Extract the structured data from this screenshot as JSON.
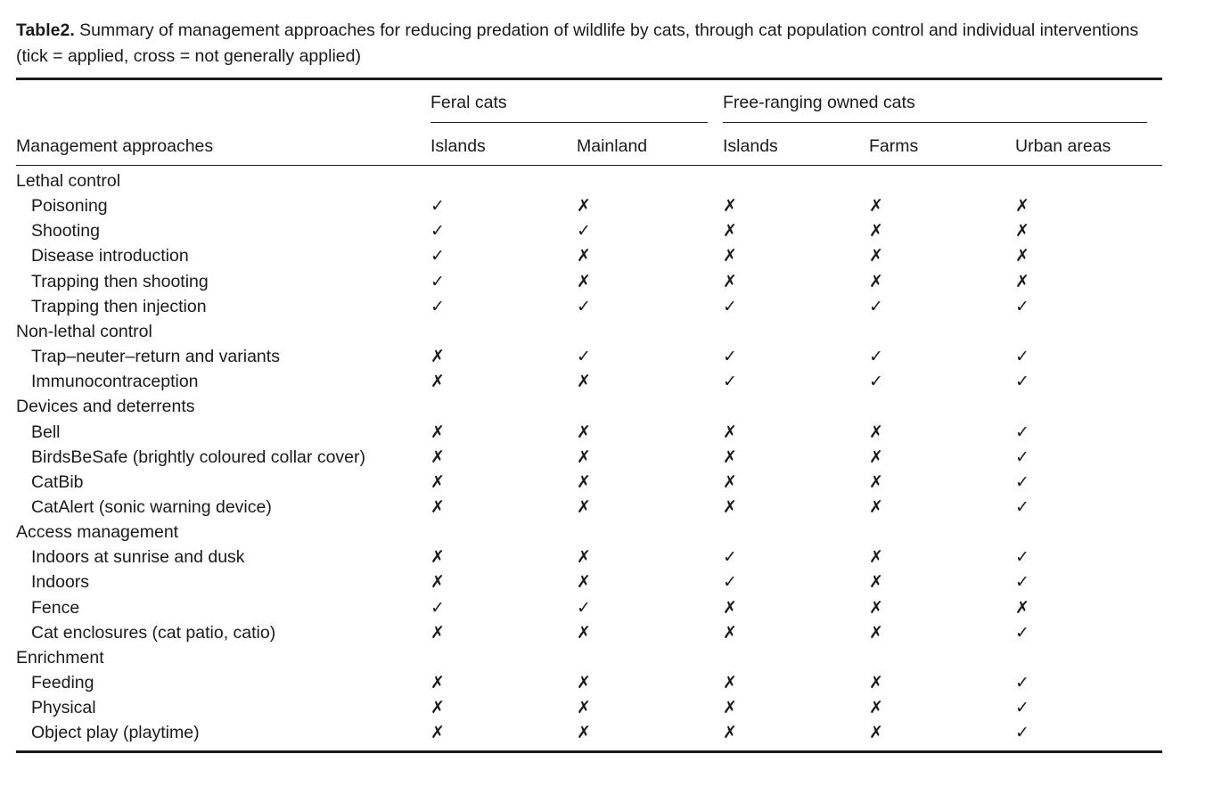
{
  "caption": {
    "label": "Table2.",
    "text": " Summary of management approaches for reducing predation of wildlife by cats, through cat population control and individual interventions (tick = applied, cross = not generally applied)"
  },
  "table": {
    "row_header": "Management approaches",
    "groups": [
      {
        "label": "Feral cats",
        "columns": [
          "Islands",
          "Mainland"
        ]
      },
      {
        "label": "Free-ranging owned cats",
        "columns": [
          "Islands",
          "Farms",
          "Urban areas"
        ]
      }
    ],
    "symbols": {
      "yes": "✓",
      "no": "✗"
    },
    "sections": [
      {
        "title": "Lethal control",
        "rows": [
          {
            "label": "Poisoning",
            "values": [
              "yes",
              "no",
              "no",
              "no",
              "no"
            ]
          },
          {
            "label": "Shooting",
            "values": [
              "yes",
              "yes",
              "no",
              "no",
              "no"
            ]
          },
          {
            "label": "Disease introduction",
            "values": [
              "yes",
              "no",
              "no",
              "no",
              "no"
            ]
          },
          {
            "label": "Trapping then shooting",
            "values": [
              "yes",
              "no",
              "no",
              "no",
              "no"
            ]
          },
          {
            "label": "Trapping then injection",
            "values": [
              "yes",
              "yes",
              "yes",
              "yes",
              "yes"
            ]
          }
        ]
      },
      {
        "title": "Non-lethal control",
        "rows": [
          {
            "label": "Trap–neuter–return and variants",
            "values": [
              "no",
              "yes",
              "yes",
              "yes",
              "yes"
            ]
          },
          {
            "label": "Immunocontraception",
            "values": [
              "no",
              "no",
              "yes",
              "yes",
              "yes"
            ]
          }
        ]
      },
      {
        "title": "Devices and deterrents",
        "rows": [
          {
            "label": "Bell",
            "values": [
              "no",
              "no",
              "no",
              "no",
              "yes"
            ]
          },
          {
            "label": "BirdsBeSafe (brightly coloured collar cover)",
            "values": [
              "no",
              "no",
              "no",
              "no",
              "yes"
            ]
          },
          {
            "label": "CatBib",
            "values": [
              "no",
              "no",
              "no",
              "no",
              "yes"
            ]
          },
          {
            "label": "CatAlert (sonic warning device)",
            "values": [
              "no",
              "no",
              "no",
              "no",
              "yes"
            ]
          }
        ]
      },
      {
        "title": "Access management",
        "rows": [
          {
            "label": "Indoors at sunrise and dusk",
            "values": [
              "no",
              "no",
              "yes",
              "no",
              "yes"
            ]
          },
          {
            "label": "Indoors",
            "values": [
              "no",
              "no",
              "yes",
              "no",
              "yes"
            ]
          },
          {
            "label": "Fence",
            "values": [
              "yes",
              "yes",
              "no",
              "no",
              "no"
            ]
          },
          {
            "label": "Cat enclosures (cat patio, catio)",
            "values": [
              "no",
              "no",
              "no",
              "no",
              "yes"
            ]
          }
        ]
      },
      {
        "title": "Enrichment",
        "rows": [
          {
            "label": "Feeding",
            "values": [
              "no",
              "no",
              "no",
              "no",
              "yes"
            ]
          },
          {
            "label": "Physical",
            "values": [
              "no",
              "no",
              "no",
              "no",
              "yes"
            ]
          },
          {
            "label": "Object play (playtime)",
            "values": [
              "no",
              "no",
              "no",
              "no",
              "yes"
            ]
          }
        ]
      }
    ]
  }
}
